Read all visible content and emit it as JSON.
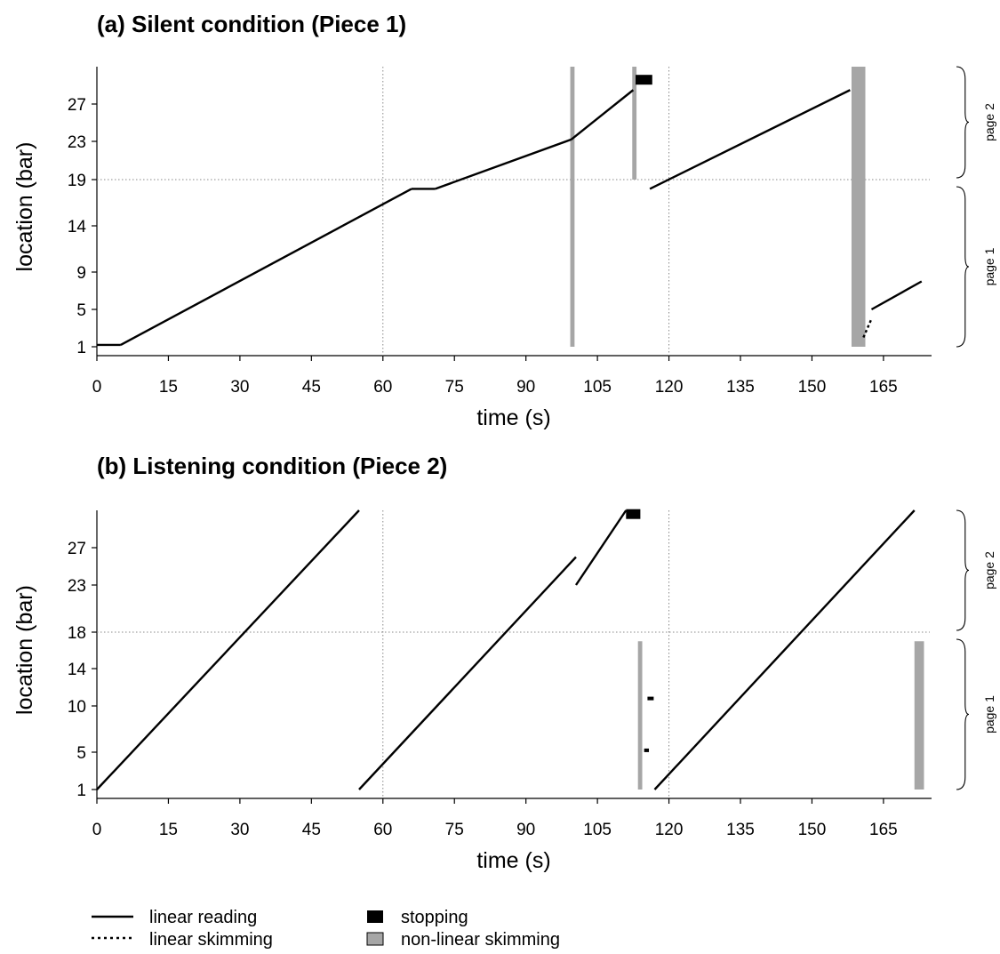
{
  "chart_data": [
    {
      "type": "line",
      "title": "(a) Silent condition (Piece 1)",
      "xlabel": "time (s)",
      "ylabel": "location (bar)",
      "xlim": [
        0,
        173
      ],
      "x_ticks": [
        0,
        15,
        30,
        45,
        60,
        75,
        90,
        105,
        120,
        135,
        150,
        165
      ],
      "y_ticks": [
        1,
        5,
        9,
        14,
        19,
        23,
        27
      ],
      "y_tick_labels": [
        "1",
        "5",
        "9",
        "14",
        "19",
        "23",
        "27"
      ],
      "page_boundary": 19,
      "vertical_gridlines": [
        60,
        120
      ],
      "page_labels": [
        {
          "label": "page 2",
          "from": 19,
          "to": 31
        },
        {
          "label": "page 1",
          "from": 1,
          "to": 18
        }
      ],
      "linear_reading": [
        [
          [
            0,
            1.2
          ],
          [
            5,
            1.2
          ]
        ],
        [
          [
            5,
            1.2
          ],
          [
            66,
            18
          ]
        ],
        [
          [
            66,
            18
          ],
          [
            71,
            18
          ]
        ],
        [
          [
            71,
            18
          ],
          [
            99.5,
            23.2
          ]
        ],
        [
          [
            99.5,
            23.2
          ],
          [
            112.5,
            28.5
          ]
        ],
        [
          [
            116,
            18
          ],
          [
            158,
            28.5
          ]
        ],
        [
          [
            162.5,
            5
          ],
          [
            173,
            8
          ]
        ]
      ],
      "linear_skimming": [
        [
          [
            160.8,
            2
          ],
          [
            162.5,
            4
          ]
        ]
      ],
      "stopping": [
        {
          "x0": 113,
          "x1": 116.5,
          "y": 29.6
        }
      ],
      "nonlinear_skimming": [
        {
          "x0": 99.3,
          "x1": 100.2,
          "y0": 1,
          "y1": 31
        },
        {
          "x0": 112.3,
          "x1": 113.2,
          "y0": 19,
          "y1": 31
        },
        {
          "x0": 158.3,
          "x1": 161.2,
          "y0": 1,
          "y1": 31
        }
      ]
    },
    {
      "type": "line",
      "title": "(b) Listening condition (Piece 2)",
      "xlabel": "time (s)",
      "ylabel": "location (bar)",
      "xlim": [
        0,
        173
      ],
      "x_ticks": [
        0,
        15,
        30,
        45,
        60,
        75,
        90,
        105,
        120,
        135,
        150,
        165
      ],
      "y_ticks": [
        1,
        5,
        10,
        14,
        18,
        23,
        27
      ],
      "y_tick_labels": [
        "1",
        "5",
        "10",
        "14",
        "18",
        "23",
        "27"
      ],
      "page_boundary": 18,
      "vertical_gridlines": [
        60,
        120
      ],
      "page_labels": [
        {
          "label": "page 2",
          "from": 18,
          "to": 31
        },
        {
          "label": "page 1",
          "from": 1,
          "to": 17
        }
      ],
      "linear_reading": [
        [
          [
            0,
            1
          ],
          [
            55,
            31
          ]
        ],
        [
          [
            55,
            1
          ],
          [
            100.5,
            26
          ]
        ],
        [
          [
            100.5,
            23
          ],
          [
            111,
            31
          ]
        ],
        [
          [
            117,
            1
          ],
          [
            171.5,
            31
          ]
        ]
      ],
      "linear_skimming": [],
      "stopping": [
        {
          "x0": 111,
          "x1": 114,
          "y": 30.6
        },
        {
          "x0": 115.5,
          "x1": 116.8,
          "y": 10.8
        },
        {
          "x0": 114.8,
          "x1": 115.8,
          "y": 5.2
        }
      ],
      "nonlinear_skimming": [
        {
          "x0": 113.5,
          "x1": 114.4,
          "y0": 1,
          "y1": 17
        },
        {
          "x0": 171.5,
          "x1": 173.5,
          "y0": 1,
          "y1": 17
        }
      ]
    }
  ],
  "legend": {
    "linear_reading": "linear reading",
    "linear_skimming": "linear skimming",
    "stopping": "stopping",
    "nonlinear_skimming": "non-linear skimming"
  },
  "colors": {
    "line": "#000000",
    "stopping": "#000000",
    "nonlinear_skimming": "#a6a6a6",
    "gridline": "#888888"
  }
}
